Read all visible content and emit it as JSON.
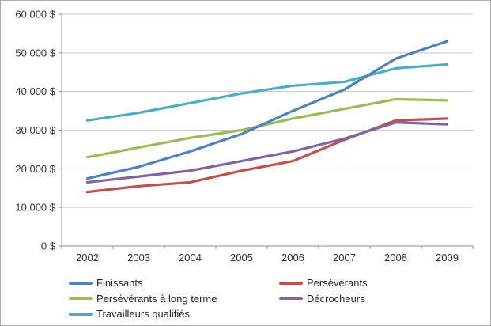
{
  "chart": {
    "background": "#ffffff",
    "border_color": "#a9a9a9",
    "gridline_color": "#c9c9c9",
    "axis_color": "#8e8e8e",
    "text_color": "#313131",
    "axis_font_px": 13
  },
  "chart_data": {
    "type": "line",
    "title": "",
    "xlabel": "",
    "ylabel": "",
    "categories": [
      "2002",
      "2003",
      "2004",
      "2005",
      "2006",
      "2007",
      "2008",
      "2009"
    ],
    "series": [
      {
        "name": "Finissants",
        "color": "#4F81BD",
        "values": [
          17500,
          20500,
          24500,
          29000,
          35000,
          40500,
          48500,
          53000
        ]
      },
      {
        "name": "Persévérants",
        "color": "#C0504D",
        "values": [
          14000,
          15500,
          16500,
          19500,
          22000,
          27500,
          32500,
          33000
        ]
      },
      {
        "name": "Persévérants à long terme",
        "color": "#9BBB59",
        "values": [
          23000,
          25500,
          28000,
          30000,
          33000,
          35500,
          38000,
          37700
        ]
      },
      {
        "name": "Décrocheurs",
        "color": "#8064A2",
        "values": [
          16500,
          18000,
          19500,
          22000,
          24500,
          27800,
          32000,
          31500
        ]
      },
      {
        "name": "Travailleurs qualifiés",
        "color": "#4BACC6",
        "values": [
          32500,
          34500,
          37000,
          39500,
          41500,
          42500,
          46000,
          47000
        ]
      }
    ],
    "ylim": [
      0,
      60000
    ],
    "ytick_step": 10000,
    "ytick_labels": [
      "0 $",
      "10 000 $",
      "20 000 $",
      "30 000 $",
      "40 000 $",
      "50 000 $",
      "60 000 $"
    ],
    "grid": true,
    "legend_position": "bottom",
    "legend_layout": [
      [
        "Finissants",
        "Persévérants à long terme",
        "Travailleurs qualifiés"
      ],
      [
        "Persévérants",
        "Décrocheurs"
      ]
    ]
  }
}
